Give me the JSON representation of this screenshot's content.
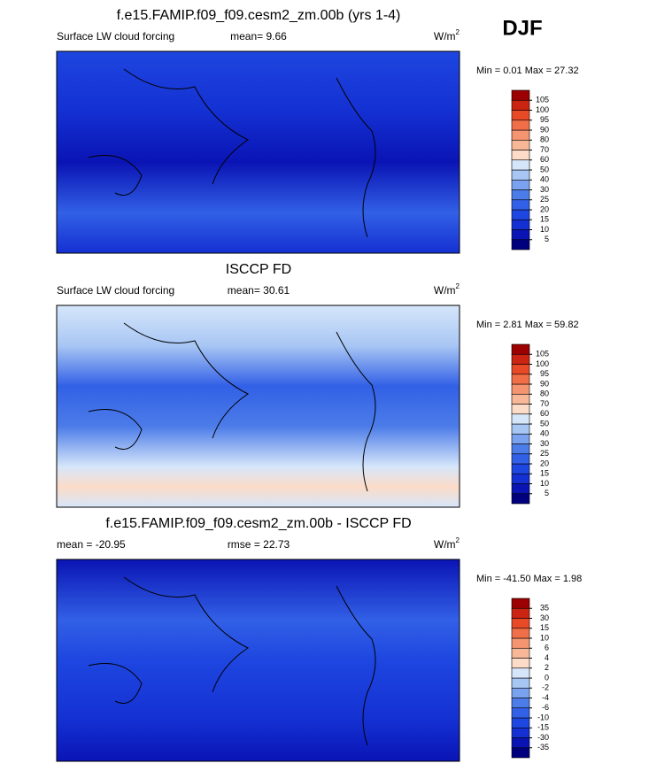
{
  "label": "DJF",
  "panels": [
    {
      "title": "f.e15.FAMIP.f09_f09.cesm2_zm.00b (yrs 1-4)",
      "left": "Surface LW cloud forcing",
      "center": "mean=   9.66",
      "units": "W/m",
      "units_sup": "2",
      "minmax": "Min =   0.01 Max =  27.32",
      "colorbar": {
        "levels": [
          5,
          10,
          15,
          20,
          25,
          30,
          40,
          50,
          60,
          70,
          80,
          90,
          95,
          100,
          105
        ],
        "colors": [
          "#00007f",
          "#0a14b4",
          "#1430d2",
          "#1e46e0",
          "#3260e6",
          "#4c7ce8",
          "#7aa2ee",
          "#a8c6f4",
          "#d6e6fa",
          "#fcdcc8",
          "#f8b898",
          "#f49470",
          "#f06e48",
          "#e84a28",
          "#cc2412",
          "#9c0000"
        ]
      }
    },
    {
      "title": "ISCCP FD",
      "left": "Surface LW cloud forcing",
      "center": "mean=  30.61",
      "units": "W/m",
      "units_sup": "2",
      "minmax": "Min =   2.81 Max =  59.82",
      "colorbar": {
        "levels": [
          5,
          10,
          15,
          20,
          25,
          30,
          40,
          50,
          60,
          70,
          80,
          90,
          95,
          100,
          105
        ],
        "colors": [
          "#00007f",
          "#0a14b4",
          "#1430d2",
          "#1e46e0",
          "#3260e6",
          "#4c7ce8",
          "#7aa2ee",
          "#a8c6f4",
          "#d6e6fa",
          "#fcdcc8",
          "#f8b898",
          "#f49470",
          "#f06e48",
          "#e84a28",
          "#cc2412",
          "#9c0000"
        ]
      }
    },
    {
      "title": "f.e15.FAMIP.f09_f09.cesm2_zm.00b - ISCCP FD",
      "left": "mean = -20.95",
      "center": "rmse =  22.73",
      "units": "W/m",
      "units_sup": "2",
      "minmax": "Min = -41.50 Max =   1.98",
      "colorbar": {
        "levels": [
          -35,
          -30,
          -15,
          -10,
          -6,
          -4,
          -2,
          0,
          2,
          4,
          6,
          10,
          15,
          30,
          35
        ],
        "colors": [
          "#00007f",
          "#0a14b4",
          "#1430d2",
          "#1e46e0",
          "#3260e6",
          "#4c7ce8",
          "#7aa2ee",
          "#a8c6f4",
          "#d6e6fa",
          "#fcdcc8",
          "#f8b898",
          "#f49470",
          "#f06e48",
          "#e84a28",
          "#cc2412",
          "#9c0000"
        ]
      }
    }
  ]
}
